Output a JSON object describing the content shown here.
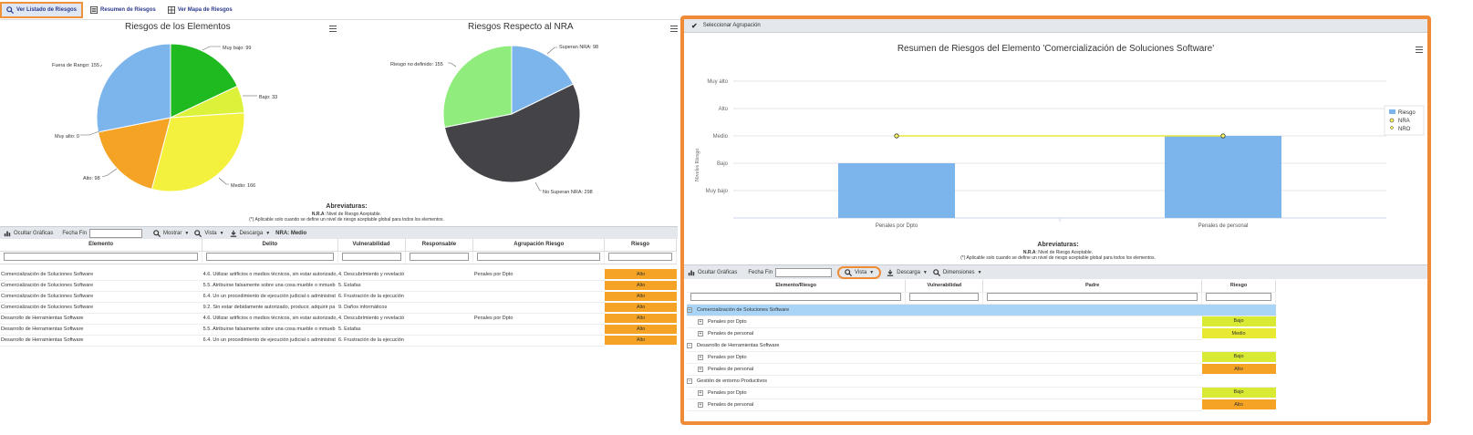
{
  "topbar": {
    "btn_listado": "Ver Listado de Riesgos",
    "btn_resumen": "Resumen de Riesgos",
    "btn_mapa": "Ver Mapa de Riesgos"
  },
  "pie1": {
    "title": "Riesgos de los Elementos",
    "labels": {
      "muy_bajo": "Muy bajo: 99",
      "bajo": "Bajo: 33",
      "medio": "Medio: 166",
      "alto": "Alto: 98",
      "muy_alto": "Muy alto: 0",
      "fuera": "Fuera de Rango: 155"
    }
  },
  "pie2": {
    "title": "Riesgos Respecto al NRA",
    "labels": {
      "superan": "Superan NRA: 98",
      "no_superan": "No Superan NRA: 298",
      "no_definido": "Riesgo no definido: 155"
    }
  },
  "chart_data": [
    {
      "type": "pie",
      "title": "Riesgos de los Elementos",
      "categories": [
        "Muy bajo",
        "Bajo",
        "Medio",
        "Alto",
        "Muy alto",
        "Fuera de Rango"
      ],
      "values": [
        99,
        33,
        166,
        98,
        0,
        155
      ],
      "colors": [
        "#1fba1f",
        "#dcf13a",
        "#f3f13d",
        "#f5a324",
        "#d9534f",
        "#7cb5ec"
      ]
    },
    {
      "type": "pie",
      "title": "Riesgos Respecto al NRA",
      "categories": [
        "Superan NRA",
        "No Superan NRA",
        "Riesgo no definido"
      ],
      "values": [
        98,
        298,
        155
      ],
      "colors": [
        "#7cb5ec",
        "#434348",
        "#90ed7d"
      ]
    },
    {
      "type": "bar",
      "title": "Resumen de Riesgos del Elemento 'Comercialización de Soluciones Software'",
      "categories": [
        "Penales por Dpto",
        "Penales de personal"
      ],
      "y_categories": [
        "Muy bajo",
        "Bajo",
        "Medio",
        "Alto",
        "Muy alto"
      ],
      "ylabel": "Niveles Riesgo",
      "series": [
        {
          "name": "Riesgo",
          "values": [
            2,
            3
          ]
        },
        {
          "name": "NRA",
          "values": [
            3,
            3
          ]
        }
      ],
      "legend": [
        "Riesgo",
        "NRA",
        "NRO"
      ],
      "ylim": [
        0,
        5
      ]
    }
  ],
  "abbr_left": {
    "title": "Abreviaturas:",
    "nra_key": "N.R.A",
    "nra_text": ": Nivel de Riesgo Aceptable.",
    "note": "(*) Aplicable solo cuando se define un nivel de riesgo aceptable global para todos los elementos."
  },
  "toolbar_left": {
    "ocultar": "Ocultar Gráficas",
    "fecha_fin": "Fecha Fin",
    "mostrar": "Mostrar",
    "vista": "Vista",
    "descarga": "Descarga",
    "nra": "NRA: Medio"
  },
  "grid_left": {
    "headers": [
      "Elemento",
      "Delito",
      "Vulnerabilidad",
      "Responsable",
      "Agrupación Riesgo",
      "Riesgo"
    ],
    "rows": [
      {
        "elemento": "Comercialización de Soluciones Software",
        "delito": "4.6. Utilizar artificios o medios técnicos, sin estar autorizado,",
        "vuln": "4. Descubrimiento y revelació",
        "agrup": "Penales por Dpto",
        "riesgo": "Alto"
      },
      {
        "elemento": "Comercialización de Soluciones Software",
        "delito": "5.5. Atribuirse falsamente sobre una cosa mueble o inmueb",
        "vuln": "5. Estafas",
        "agrup": "",
        "riesgo": "Alto"
      },
      {
        "elemento": "Comercialización de Soluciones Software",
        "delito": "6.4. Un un procedimiento de ejecución judicial o administrat",
        "vuln": "6. Frustración de la ejecución",
        "agrup": "",
        "riesgo": "Alto"
      },
      {
        "elemento": "Comercialización de Soluciones Software",
        "delito": "9.2. Sin estar debidamente autorizado, producir, adquirir pa",
        "vuln": "9. Daños informáticos",
        "agrup": "",
        "riesgo": "Alto"
      },
      {
        "elemento": "Desarrollo de Herramientas Software",
        "delito": "4.6. Utilizar artificios o medios técnicos, sin estar autorizado,",
        "vuln": "4. Descubrimiento y revelació",
        "agrup": "Penales por Dpto",
        "riesgo": "Alto"
      },
      {
        "elemento": "Desarrollo de Herramientas Software",
        "delito": "5.5. Atribuirse falsamente sobre una cosa mueble o inmueb",
        "vuln": "5. Estafas",
        "agrup": "",
        "riesgo": "Alto"
      },
      {
        "elemento": "Desarrollo de Herramientas Software",
        "delito": "6.4. Un un procedimiento de ejecución judicial o administrat",
        "vuln": "6. Frustración de la ejecución",
        "agrup": "",
        "riesgo": "Alto"
      }
    ]
  },
  "right": {
    "select_agrupacion": "Seleccionar Agrupación",
    "chart_title": "Resumen de Riesgos del Elemento 'Comercialización de Soluciones Software'",
    "y_levels": [
      "Muy alto",
      "Alto",
      "Medio",
      "Bajo",
      "Muy bajo"
    ],
    "ylabel": "Niveles Riesgo",
    "x_labels": [
      "Penales por Dpto",
      "Penales de personal"
    ],
    "legend": [
      "Riesgo",
      "NRA",
      "NRO"
    ],
    "abbr_title": "Abreviaturas:",
    "nra_key": "N.R.A",
    "nra_text": ": Nivel de Riesgo Aceptable.",
    "note": "(*) Aplicable solo cuando se define un nivel de riesgo aceptable global para todos los elementos.",
    "toolbar": {
      "ocultar": "Ocultar Gráficas",
      "fecha_fin": "Fecha Fin",
      "vista": "Vista",
      "descarga": "Descarga",
      "dimensiones": "Dimensiones"
    },
    "headers": [
      "Elemento/Riesgo",
      "Vulnerabilidad",
      "Padre",
      "Riesgo"
    ],
    "groups": [
      {
        "name": "Comercialización de Soluciones Software",
        "children": [
          {
            "name": "Penales por Dpto",
            "riesgo": "Bajo"
          },
          {
            "name": "Penales de personal",
            "riesgo": "Medio"
          }
        ]
      },
      {
        "name": "Desarrollo de Herramientas Software",
        "children": [
          {
            "name": "Penales por Dpto",
            "riesgo": "Bajo"
          },
          {
            "name": "Penales de personal",
            "riesgo": "Alto"
          }
        ]
      },
      {
        "name": "Gestión de entorno Productivos",
        "children": [
          {
            "name": "Penales por Dpto",
            "riesgo": "Bajo"
          },
          {
            "name": "Penales de personal",
            "riesgo": "Alto"
          }
        ]
      }
    ]
  }
}
